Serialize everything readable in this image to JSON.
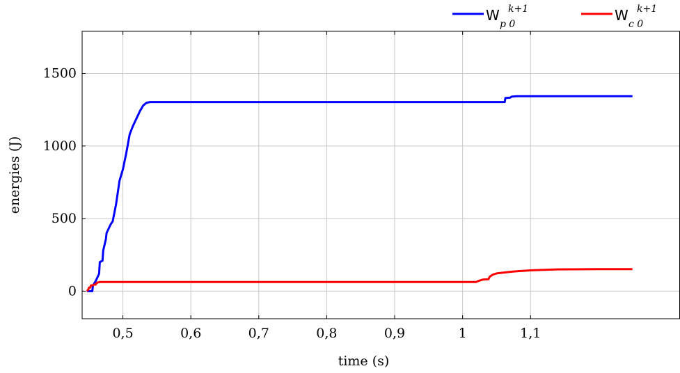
{
  "chart_data": {
    "type": "line",
    "xlabel": "time (s)",
    "ylabel": "energies (J)",
    "xlim": [
      0.44,
      1.32
    ],
    "ylim": [
      -190,
      1790
    ],
    "x_ticks": [
      0.5,
      0.6,
      0.7,
      0.8,
      0.9,
      1.0,
      1.1
    ],
    "x_tick_labels": [
      "0,5",
      "0,6",
      "0,7",
      "0,8",
      "0,9",
      "1",
      "1,1"
    ],
    "y_ticks": [
      0,
      500,
      1000,
      1500
    ],
    "y_tick_labels": [
      "0",
      "500",
      "1000",
      "1500"
    ],
    "grid": true,
    "legend_position": "top-right, above plot",
    "series": [
      {
        "name": "W_p0^{k+1}",
        "legend": {
          "base": "W",
          "subscript": "p 0",
          "superscript": "k+1"
        },
        "color": "#0000ff",
        "x": [
          0.447,
          0.455,
          0.456,
          0.46,
          0.462,
          0.465,
          0.466,
          0.47,
          0.471,
          0.475,
          0.476,
          0.48,
          0.482,
          0.485,
          0.49,
          0.495,
          0.5,
          0.505,
          0.51,
          0.515,
          0.52,
          0.525,
          0.53,
          0.535,
          0.54,
          0.545,
          1.0,
          1.062,
          1.063,
          1.07,
          1.072,
          1.08,
          1.2,
          1.25
        ],
        "y": [
          0,
          0,
          40,
          70,
          90,
          120,
          200,
          210,
          280,
          360,
          400,
          440,
          460,
          480,
          600,
          760,
          840,
          950,
          1080,
          1140,
          1190,
          1240,
          1280,
          1298,
          1303,
          1303,
          1303,
          1303,
          1330,
          1333,
          1340,
          1343,
          1343,
          1343
        ]
      },
      {
        "name": "W_c0^{k+1}",
        "legend": {
          "base": "W",
          "subscript": "c 0",
          "superscript": "k+1"
        },
        "color": "#ff0000",
        "x": [
          0.447,
          0.449,
          0.45,
          0.452,
          0.453,
          0.456,
          0.457,
          0.46,
          0.461,
          0.463,
          0.466,
          0.8,
          1.0,
          1.02,
          1.023,
          1.03,
          1.038,
          1.04,
          1.045,
          1.05,
          1.06,
          1.07,
          1.08,
          1.1,
          1.12,
          1.14,
          1.2,
          1.25
        ],
        "y": [
          0,
          10,
          25,
          25,
          40,
          40,
          45,
          45,
          55,
          60,
          63,
          63,
          63,
          63,
          70,
          80,
          82,
          100,
          115,
          122,
          128,
          133,
          137,
          143,
          147,
          150,
          152,
          152
        ]
      }
    ]
  }
}
